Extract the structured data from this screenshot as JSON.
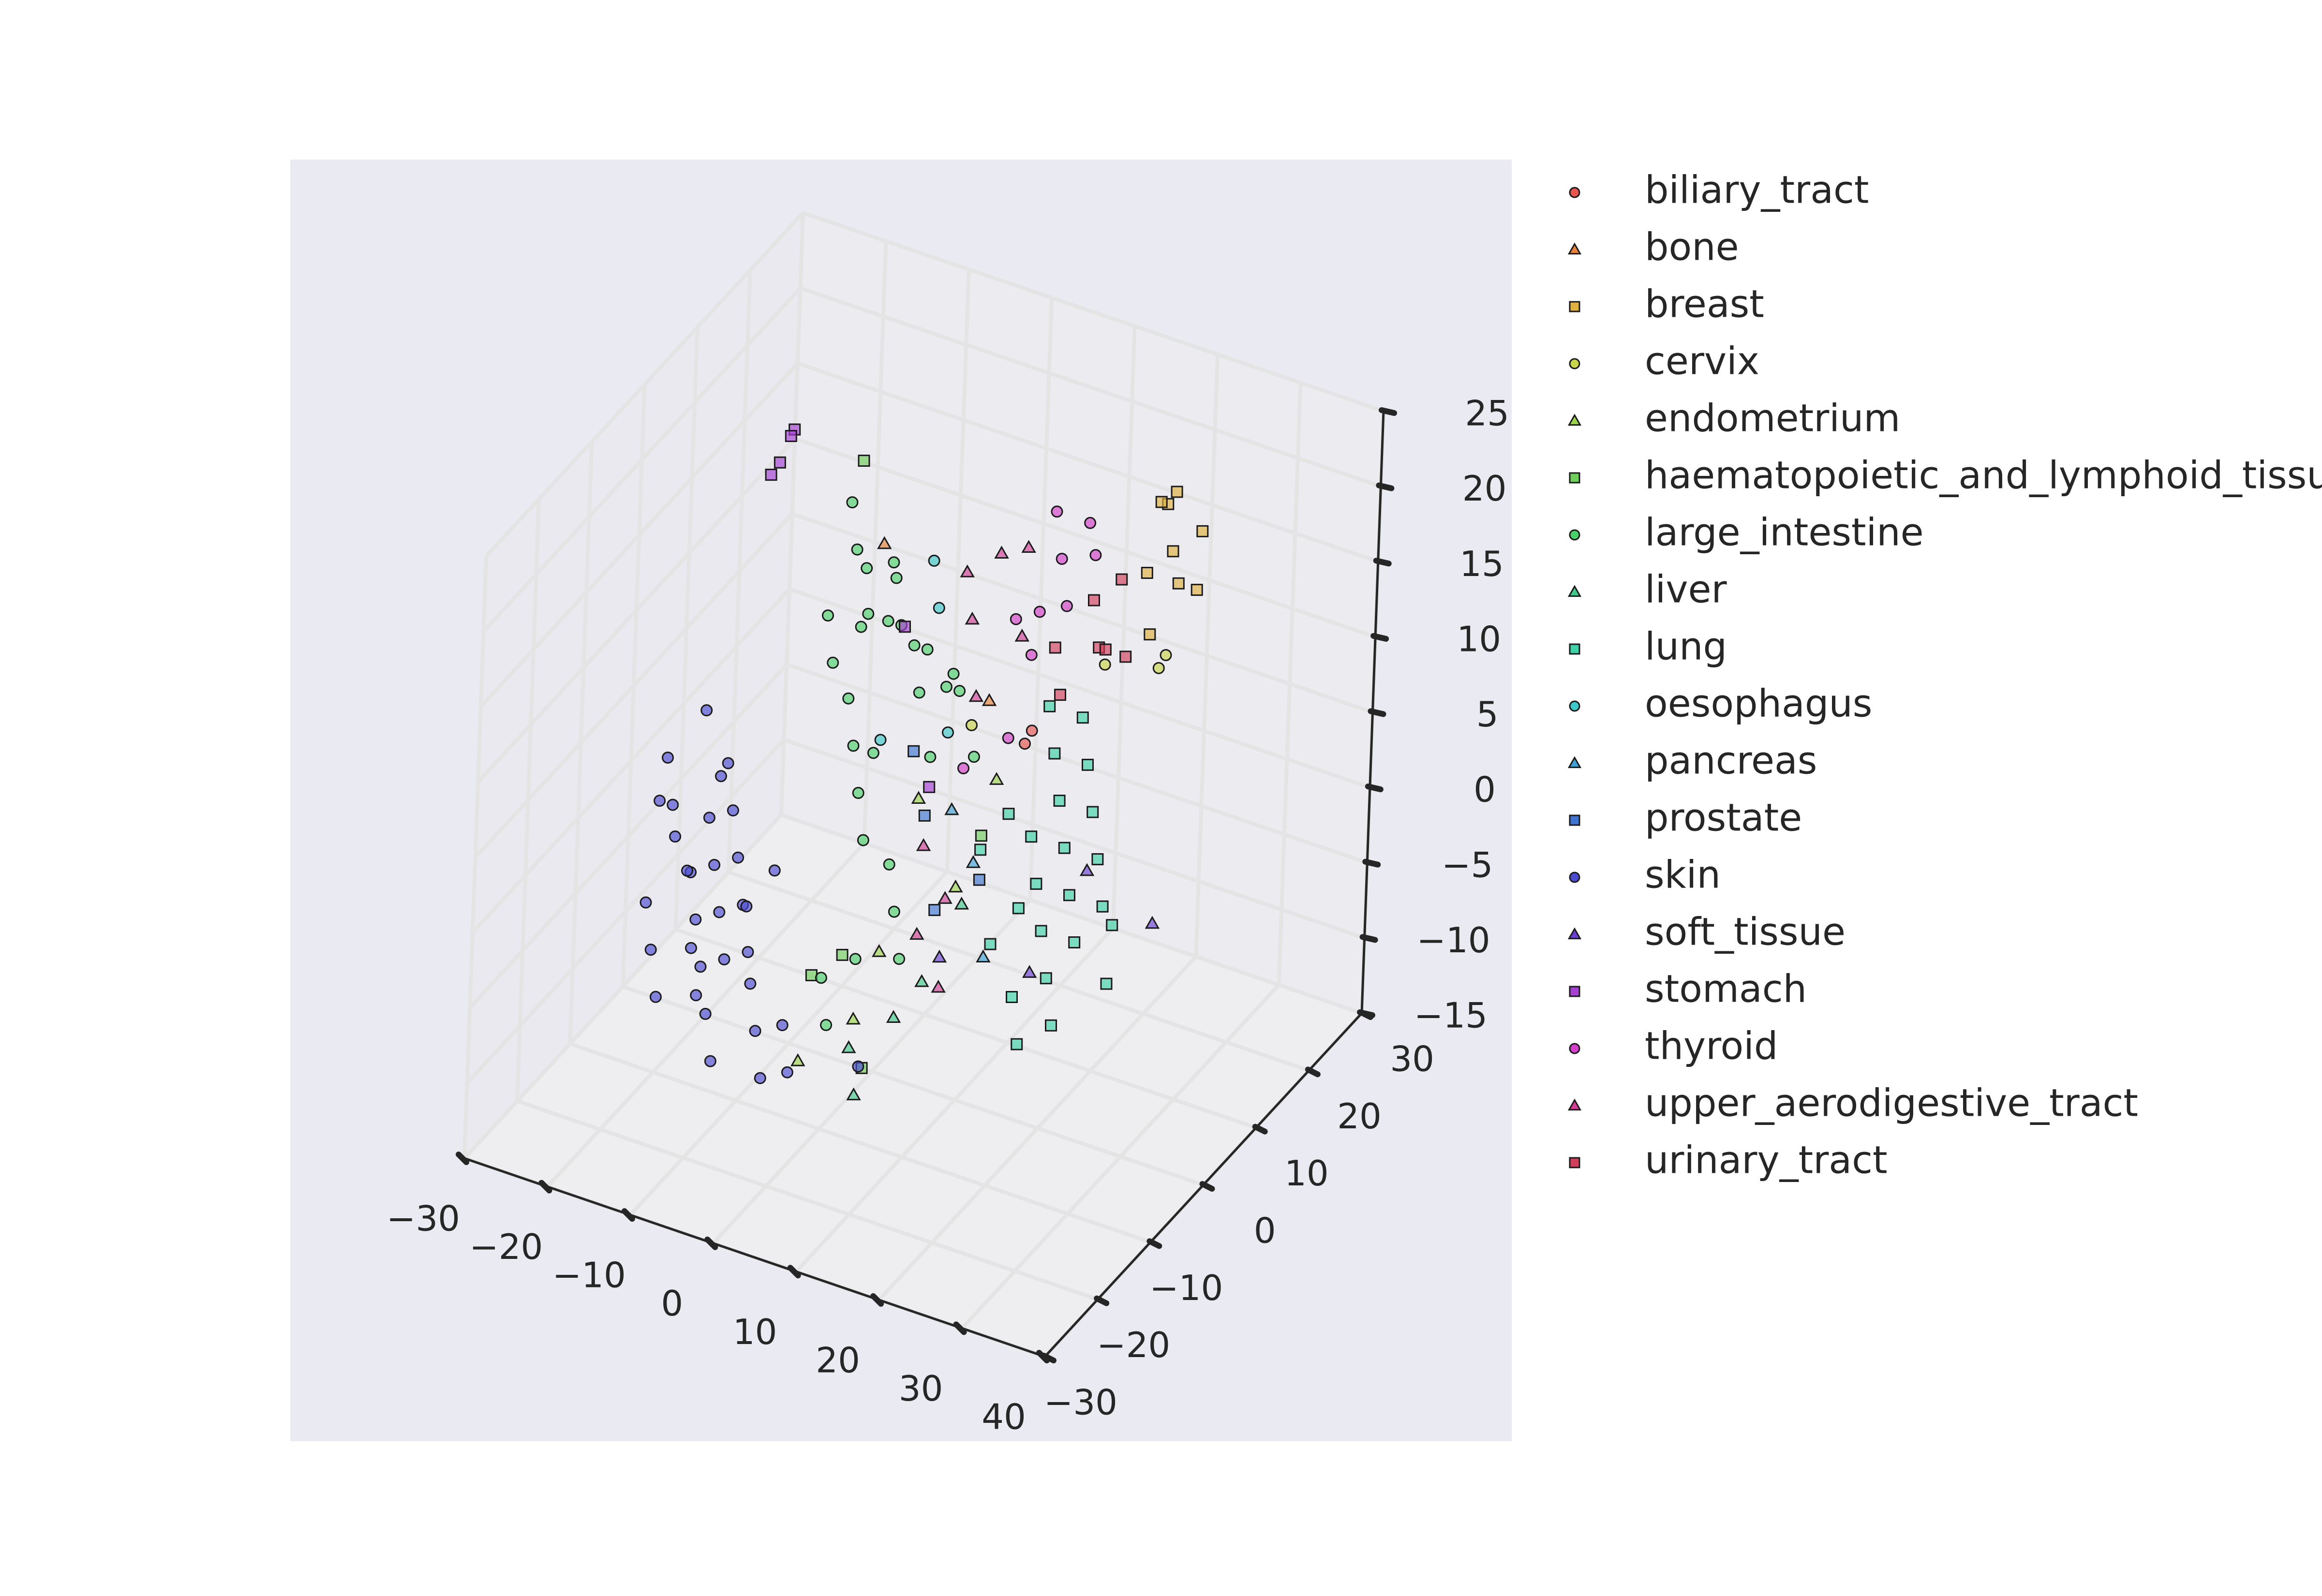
{
  "chart_data": {
    "type": "scatter",
    "subtype": "3d-scatter",
    "title": "",
    "xlabel": "",
    "ylabel": "",
    "zlabel": "",
    "xlim": [
      -30,
      40
    ],
    "ylim": [
      -30,
      30
    ],
    "zlim": [
      -15,
      25
    ],
    "x_ticks": [
      "−30",
      "−20",
      "−10",
      "0",
      "10",
      "20",
      "30",
      "40"
    ],
    "y_ticks": [
      "−30",
      "−20",
      "−10",
      "0",
      "10",
      "20",
      "30"
    ],
    "z_ticks": [
      "−15",
      "−10",
      "−5",
      "0",
      "5",
      "10",
      "15",
      "20",
      "25"
    ],
    "grid": true,
    "legend_position": "outside-right",
    "background_color": "#EAEAF2",
    "series": [
      {
        "name": "biliary_tract",
        "marker": "circle",
        "color": "#E8544E",
        "points": [
          [
            12,
            8,
            6
          ],
          [
            14,
            6,
            8
          ]
        ]
      },
      {
        "name": "bone",
        "marker": "triangle",
        "color": "#E8833A",
        "points": [
          [
            -8,
            12,
            14
          ],
          [
            10,
            4,
            10
          ]
        ]
      },
      {
        "name": "breast",
        "marker": "square",
        "color": "#E0B040",
        "points": [
          [
            22,
            18,
            20
          ],
          [
            24,
            16,
            18
          ],
          [
            20,
            20,
            19
          ],
          [
            26,
            14,
            17
          ],
          [
            23,
            18,
            21
          ],
          [
            21,
            16,
            16
          ],
          [
            25,
            20,
            18
          ],
          [
            24,
            12,
            14
          ],
          [
            27,
            16,
            16
          ]
        ]
      },
      {
        "name": "cervix",
        "marker": "circle",
        "color": "#C9D44A",
        "points": [
          [
            20,
            10,
            12
          ],
          [
            24,
            14,
            11
          ],
          [
            8,
            4,
            8
          ],
          [
            26,
            12,
            13
          ]
        ]
      },
      {
        "name": "endometrium",
        "marker": "triangle",
        "color": "#9BD44C",
        "points": [
          [
            2,
            4,
            2
          ],
          [
            8,
            2,
            -2
          ],
          [
            4,
            -6,
            -4
          ],
          [
            0,
            -4,
            -10
          ],
          [
            -4,
            -8,
            -12
          ],
          [
            10,
            6,
            4
          ]
        ]
      },
      {
        "name": "haematopoietic_and_lymphoid_tissue",
        "marker": "square",
        "color": "#6ED05A",
        "points": [
          [
            -12,
            14,
            18
          ],
          [
            -10,
            4,
            -12
          ],
          [
            0,
            -2,
            -14
          ],
          [
            6,
            10,
            -2
          ],
          [
            -4,
            0,
            -8
          ]
        ]
      },
      {
        "name": "large_intestine",
        "marker": "circle",
        "color": "#4BD16A",
        "points": [
          [
            -12,
            12,
            16
          ],
          [
            -10,
            10,
            14
          ],
          [
            -8,
            14,
            12
          ],
          [
            -6,
            10,
            10
          ],
          [
            -4,
            12,
            8
          ],
          [
            -2,
            10,
            6
          ],
          [
            0,
            8,
            10
          ],
          [
            2,
            10,
            8
          ],
          [
            -6,
            6,
            12
          ],
          [
            -8,
            8,
            10
          ],
          [
            -4,
            8,
            14
          ],
          [
            -2,
            6,
            12
          ],
          [
            0,
            12,
            6
          ],
          [
            2,
            6,
            4
          ],
          [
            4,
            8,
            8
          ],
          [
            -10,
            6,
            8
          ],
          [
            -6,
            4,
            4
          ],
          [
            -4,
            2,
            2
          ],
          [
            -2,
            0,
            0
          ],
          [
            0,
            2,
            -2
          ],
          [
            2,
            0,
            -4
          ],
          [
            4,
            -2,
            -6
          ],
          [
            -4,
            -4,
            -8
          ],
          [
            -2,
            -6,
            -10
          ],
          [
            0,
            -4,
            -6
          ],
          [
            -8,
            6,
            6
          ],
          [
            -6,
            8,
            2
          ],
          [
            6,
            8,
            4
          ],
          [
            -10,
            12,
            12
          ],
          [
            -12,
            8,
            10
          ]
        ]
      },
      {
        "name": "liver",
        "marker": "triangle",
        "color": "#40C98A",
        "points": [
          [
            6,
            -6,
            -8
          ],
          [
            4,
            -10,
            -12
          ],
          [
            8,
            -4,
            -6
          ],
          [
            2,
            -8,
            -10
          ],
          [
            10,
            0,
            -2
          ]
        ]
      },
      {
        "name": "lung",
        "marker": "square",
        "color": "#3FD2A8",
        "points": [
          [
            18,
            4,
            8
          ],
          [
            20,
            2,
            6
          ],
          [
            22,
            0,
            4
          ],
          [
            24,
            -2,
            2
          ],
          [
            26,
            -4,
            0
          ],
          [
            20,
            -2,
            2
          ],
          [
            22,
            -4,
            0
          ],
          [
            18,
            0,
            4
          ],
          [
            24,
            2,
            6
          ],
          [
            26,
            0,
            4
          ],
          [
            28,
            -2,
            2
          ],
          [
            16,
            -4,
            -2
          ],
          [
            20,
            -6,
            -4
          ],
          [
            22,
            -8,
            -6
          ],
          [
            18,
            -2,
            0
          ],
          [
            24,
            -6,
            -2
          ],
          [
            26,
            -8,
            -4
          ],
          [
            28,
            0,
            0
          ],
          [
            14,
            2,
            4
          ],
          [
            16,
            6,
            10
          ],
          [
            30,
            -4,
            -2
          ],
          [
            12,
            0,
            2
          ],
          [
            22,
            4,
            8
          ],
          [
            20,
            6,
            10
          ]
        ]
      },
      {
        "name": "oesophagus",
        "marker": "circle",
        "color": "#3FC8C8",
        "points": [
          [
            -2,
            12,
            14
          ],
          [
            0,
            10,
            12
          ],
          [
            4,
            6,
            6
          ],
          [
            -4,
            6,
            4
          ]
        ]
      },
      {
        "name": "pancreas",
        "marker": "triangle",
        "color": "#3FA2D2",
        "points": [
          [
            6,
            4,
            2
          ],
          [
            10,
            2,
            0
          ],
          [
            14,
            -2,
            -4
          ]
        ]
      },
      {
        "name": "prostate",
        "marker": "square",
        "color": "#3F74D2",
        "points": [
          [
            0,
            6,
            4
          ],
          [
            4,
            2,
            2
          ],
          [
            8,
            -2,
            -2
          ],
          [
            12,
            0,
            0
          ]
        ]
      },
      {
        "name": "skin",
        "marker": "circle",
        "color": "#4B4BD2",
        "points": [
          [
            -22,
            -6,
            4
          ],
          [
            -20,
            -8,
            2
          ],
          [
            -18,
            -4,
            0
          ],
          [
            -16,
            -6,
            -2
          ],
          [
            -14,
            -8,
            -4
          ],
          [
            -12,
            -10,
            -6
          ],
          [
            -20,
            -4,
            -4
          ],
          [
            -18,
            -6,
            -6
          ],
          [
            -16,
            -8,
            -8
          ],
          [
            -14,
            -10,
            -10
          ],
          [
            -22,
            -8,
            -8
          ],
          [
            -20,
            -10,
            -10
          ],
          [
            -24,
            -6,
            -6
          ],
          [
            -22,
            -4,
            -2
          ],
          [
            -18,
            -2,
            2
          ],
          [
            -16,
            -4,
            4
          ],
          [
            -14,
            -6,
            2
          ],
          [
            -12,
            -8,
            0
          ],
          [
            -10,
            -10,
            -2
          ],
          [
            -8,
            -12,
            -4
          ],
          [
            -10,
            -8,
            -8
          ],
          [
            -8,
            -10,
            -10
          ],
          [
            -6,
            -12,
            -12
          ],
          [
            -24,
            -4,
            0
          ],
          [
            -20,
            -2,
            6
          ],
          [
            -18,
            -8,
            -2
          ],
          [
            -16,
            -10,
            -6
          ],
          [
            -14,
            -12,
            -8
          ],
          [
            -12,
            -6,
            -4
          ],
          [
            -10,
            -4,
            -2
          ],
          [
            -6,
            -8,
            -10
          ],
          [
            -4,
            -10,
            -12
          ],
          [
            -12,
            -12,
            -12
          ],
          [
            2,
            -6,
            -12
          ]
        ]
      },
      {
        "name": "soft_tissue",
        "marker": "triangle",
        "color": "#6A3FD2",
        "points": [
          [
            34,
            -2,
            2
          ],
          [
            22,
            -6,
            -2
          ],
          [
            26,
            -2,
            4
          ],
          [
            10,
            -4,
            -4
          ]
        ]
      },
      {
        "name": "stomach",
        "marker": "square",
        "color": "#A63FD2",
        "points": [
          [
            -22,
            14,
            16
          ],
          [
            -21,
            15,
            18
          ],
          [
            -22,
            16,
            17
          ],
          [
            -23,
            14,
            15
          ],
          [
            -4,
            10,
            10
          ],
          [
            2,
            6,
            2
          ]
        ]
      },
      {
        "name": "thyroid",
        "marker": "circle",
        "color": "#D23FC8",
        "points": [
          [
            12,
            14,
            16
          ],
          [
            14,
            12,
            14
          ],
          [
            10,
            16,
            18
          ],
          [
            16,
            14,
            17
          ],
          [
            8,
            12,
            12
          ],
          [
            12,
            10,
            14
          ],
          [
            14,
            16,
            18
          ],
          [
            10,
            12,
            10
          ],
          [
            6,
            6,
            4
          ],
          [
            10,
            8,
            6
          ]
        ]
      },
      {
        "name": "upper_aerodigestive_tract",
        "marker": "triangle",
        "color": "#D23F96",
        "points": [
          [
            6,
            12,
            16
          ],
          [
            8,
            14,
            16
          ],
          [
            4,
            10,
            12
          ],
          [
            2,
            12,
            14
          ],
          [
            10,
            10,
            12
          ],
          [
            6,
            8,
            8
          ],
          [
            4,
            2,
            0
          ],
          [
            8,
            0,
            -2
          ],
          [
            6,
            -2,
            -4
          ],
          [
            10,
            -4,
            -6
          ]
        ]
      },
      {
        "name": "urinary_tract",
        "marker": "square",
        "color": "#D23F5A",
        "points": [
          [
            16,
            14,
            14
          ],
          [
            18,
            12,
            12
          ],
          [
            20,
            10,
            13
          ],
          [
            14,
            10,
            12
          ],
          [
            18,
            16,
            15
          ],
          [
            16,
            8,
            10
          ],
          [
            20,
            14,
            11
          ]
        ]
      }
    ]
  }
}
